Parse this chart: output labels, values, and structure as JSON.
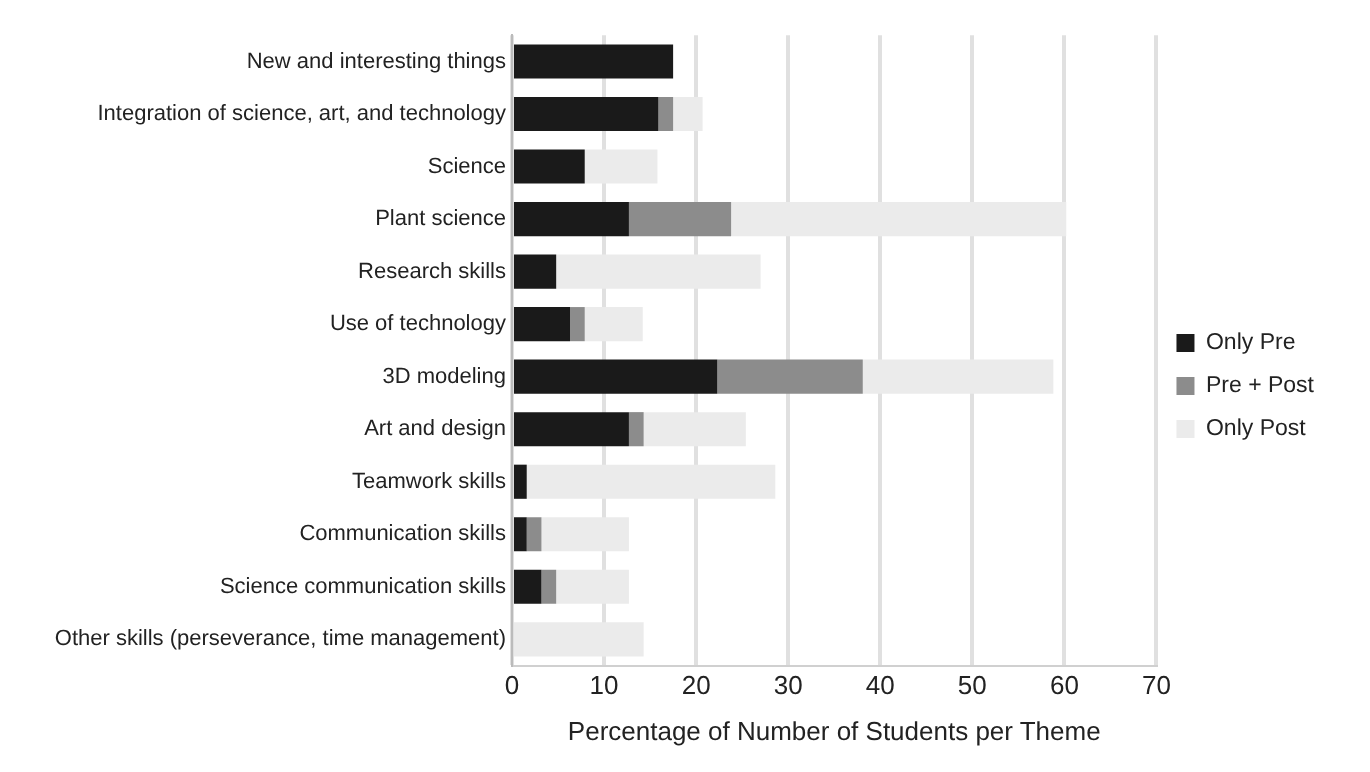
{
  "chart_data": {
    "type": "bar",
    "orientation": "horizontal",
    "stacked": true,
    "xlabel": "Percentage of Number of Students per Theme",
    "categories": [
      "New and interesting things",
      "Integration of science, art, and technology",
      "Science",
      "Plant science",
      "Research skills",
      "Use of technology",
      "3D modeling",
      "Art and design",
      "Teamwork skills",
      "Communication skills",
      "Science communication skills",
      "Other skills (perseverance, time management)"
    ],
    "series": [
      {
        "name": "Only Pre",
        "color": "#1a1a1a",
        "values": [
          17.5,
          15.9,
          7.9,
          12.7,
          4.8,
          6.3,
          22.3,
          12.7,
          1.6,
          1.6,
          3.2,
          0
        ]
      },
      {
        "name": "Pre + Post",
        "color": "#8c8c8c",
        "values": [
          0,
          1.6,
          0,
          11.1,
          0,
          1.6,
          15.8,
          1.6,
          0,
          1.6,
          1.6,
          0
        ]
      },
      {
        "name": "Only Post",
        "color": "#ebebeb",
        "values": [
          0,
          3.2,
          7.9,
          36.4,
          22.2,
          6.3,
          20.7,
          11.1,
          27.0,
          9.5,
          7.9,
          14.3
        ]
      }
    ],
    "xlim": [
      0,
      70
    ],
    "xticks": [
      0,
      10,
      20,
      30,
      40,
      50,
      60,
      70
    ],
    "grid": "x",
    "legend": "right"
  }
}
